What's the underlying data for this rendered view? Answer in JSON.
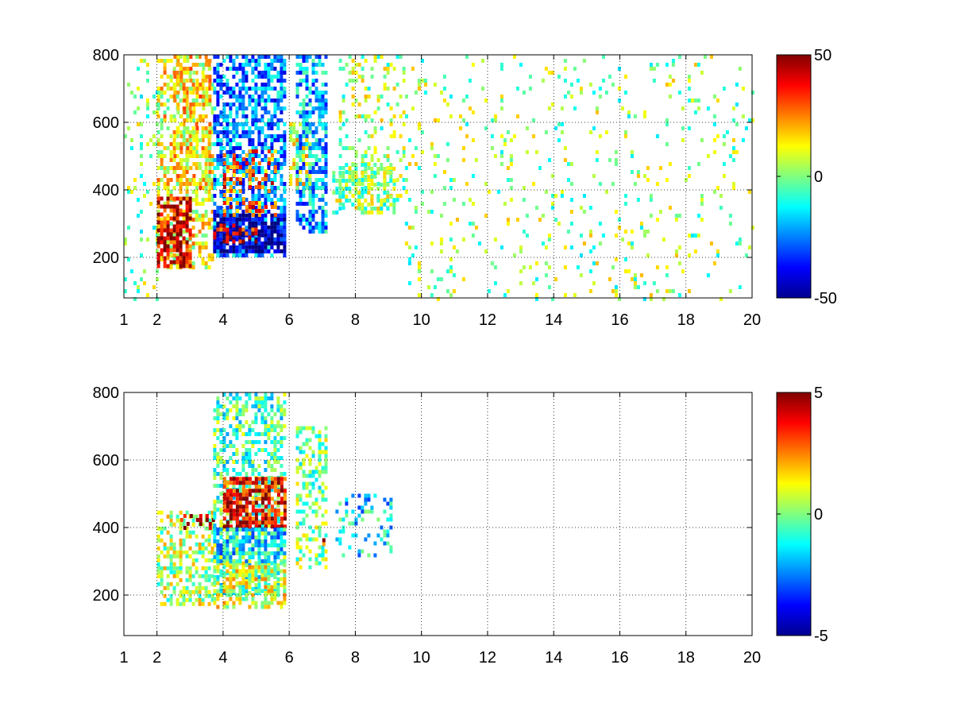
{
  "chart_data": [
    {
      "type": "heatmap",
      "title": "",
      "xlabel": "",
      "ylabel": "",
      "xlim": [
        1,
        20
      ],
      "ylim": [
        80,
        800
      ],
      "x_ticks": [
        1,
        2,
        4,
        6,
        8,
        10,
        12,
        14,
        16,
        18,
        20
      ],
      "x_tick_labels": [
        "1",
        "2",
        "4",
        "6",
        "8",
        "10",
        "12",
        "14",
        "16",
        "18",
        "20"
      ],
      "y_ticks": [
        200,
        400,
        600,
        800
      ],
      "y_tick_labels": [
        "200",
        "400",
        "600",
        "800"
      ],
      "grid": true,
      "colormap": "jet",
      "clim": [
        -50,
        50
      ],
      "colorbar_ticks": [
        50,
        0,
        -50
      ],
      "colorbar_tick_labels": [
        "50",
        "0",
        "-50"
      ],
      "regions": [
        {
          "x": [
            1.0,
            2.0
          ],
          "y": [
            80,
            800
          ],
          "value": 0,
          "density": 0.12
        },
        {
          "x": [
            2.0,
            3.7
          ],
          "y": [
            170,
            800
          ],
          "value": 12,
          "density": 0.45
        },
        {
          "x": [
            2.0,
            3.0
          ],
          "y": [
            170,
            380
          ],
          "value": 38,
          "density": 0.75
        },
        {
          "x": [
            2.5,
            3.6
          ],
          "y": [
            400,
            800
          ],
          "value": 15,
          "density": 0.35
        },
        {
          "x": [
            3.7,
            5.9
          ],
          "y": [
            200,
            800
          ],
          "value": -25,
          "density": 0.6
        },
        {
          "x": [
            3.7,
            5.9
          ],
          "y": [
            220,
            330
          ],
          "value": -45,
          "density": 0.8
        },
        {
          "x": [
            3.7,
            5.0
          ],
          "y": [
            250,
            300
          ],
          "value": 40,
          "density": 0.4
        },
        {
          "x": [
            4.0,
            5.6
          ],
          "y": [
            330,
            520
          ],
          "value": 28,
          "density": 0.35
        },
        {
          "x": [
            6.2,
            7.1
          ],
          "y": [
            280,
            800
          ],
          "value": -20,
          "density": 0.6
        },
        {
          "x": [
            6.0,
            6.6
          ],
          "y": [
            400,
            600
          ],
          "value": 10,
          "density": 0.4
        },
        {
          "x": [
            7.5,
            9.5
          ],
          "y": [
            350,
            800
          ],
          "value": 3,
          "density": 0.25
        },
        {
          "x": [
            7.3,
            9.2
          ],
          "y": [
            330,
            480
          ],
          "value": 2,
          "density": 0.5
        },
        {
          "x": [
            9.5,
            20.0
          ],
          "y": [
            80,
            800
          ],
          "value": 2,
          "density": 0.07
        }
      ]
    },
    {
      "type": "heatmap",
      "title": "",
      "xlabel": "",
      "ylabel": "",
      "xlim": [
        1,
        20
      ],
      "ylim": [
        80,
        800
      ],
      "x_ticks": [
        1,
        2,
        4,
        6,
        8,
        10,
        12,
        14,
        16,
        18,
        20
      ],
      "x_tick_labels": [
        "1",
        "2",
        "4",
        "6",
        "8",
        "10",
        "12",
        "14",
        "16",
        "18",
        "20"
      ],
      "y_ticks": [
        200,
        400,
        600,
        800
      ],
      "y_tick_labels": [
        "200",
        "400",
        "600",
        "800"
      ],
      "grid": true,
      "colormap": "jet",
      "clim": [
        -5,
        5
      ],
      "colorbar_ticks": [
        5,
        0,
        -5
      ],
      "colorbar_tick_labels": [
        "5",
        "0",
        "-5"
      ],
      "regions": [
        {
          "x": [
            2.0,
            3.7
          ],
          "y": [
            170,
            450
          ],
          "value": 0.5,
          "density": 0.45
        },
        {
          "x": [
            2.7,
            3.7
          ],
          "y": [
            400,
            440
          ],
          "value": 4.5,
          "density": 0.4
        },
        {
          "x": [
            3.7,
            5.9
          ],
          "y": [
            200,
            800
          ],
          "value": -0.5,
          "density": 0.5
        },
        {
          "x": [
            3.7,
            5.9
          ],
          "y": [
            170,
            300
          ],
          "value": 0.8,
          "density": 0.6
        },
        {
          "x": [
            4.0,
            5.9
          ],
          "y": [
            400,
            550
          ],
          "value": 3.8,
          "density": 0.75
        },
        {
          "x": [
            3.7,
            5.9
          ],
          "y": [
            300,
            400
          ],
          "value": -1.5,
          "density": 0.6
        },
        {
          "x": [
            6.2,
            7.1
          ],
          "y": [
            280,
            700
          ],
          "value": 0,
          "density": 0.45
        },
        {
          "x": [
            7.0,
            7.15
          ],
          "y": [
            330,
            380
          ],
          "value": 3.5,
          "density": 0.5
        },
        {
          "x": [
            7.4,
            9.1
          ],
          "y": [
            320,
            500
          ],
          "value": -1.5,
          "density": 0.25
        }
      ]
    }
  ]
}
